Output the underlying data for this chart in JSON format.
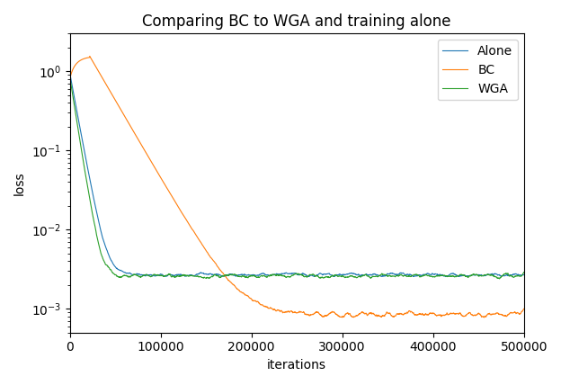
{
  "title": "Comparing BC to WGA and training alone",
  "xlabel": "iterations",
  "ylabel": "loss",
  "xlim": [
    0,
    500000
  ],
  "ylim": [
    0.0005,
    3.0
  ],
  "legend_labels": [
    "Alone",
    "BC",
    "WGA"
  ],
  "colors": {
    "Alone": "#1f77b4",
    "BC": "#ff7f0e",
    "WGA": "#2ca02c"
  },
  "n_points": 2000,
  "seed": 7,
  "alone_start": 0.95,
  "alone_converge": 0.0027,
  "alone_converge_tau": 7000,
  "alone_noise_rel": 0.12,
  "bc_start": 0.8,
  "bc_peak": 1.55,
  "bc_peak_iter": 22000,
  "bc_rise_tau": 8000,
  "bc_fall_tau": 22000,
  "bc_converge": 0.00085,
  "bc_noise_rel": 0.18,
  "wga_start": 0.85,
  "wga_converge": 0.0026,
  "wga_converge_tau": 6000,
  "wga_noise_rel": 0.15,
  "figsize": [
    6.24,
    4.28
  ],
  "dpi": 100
}
